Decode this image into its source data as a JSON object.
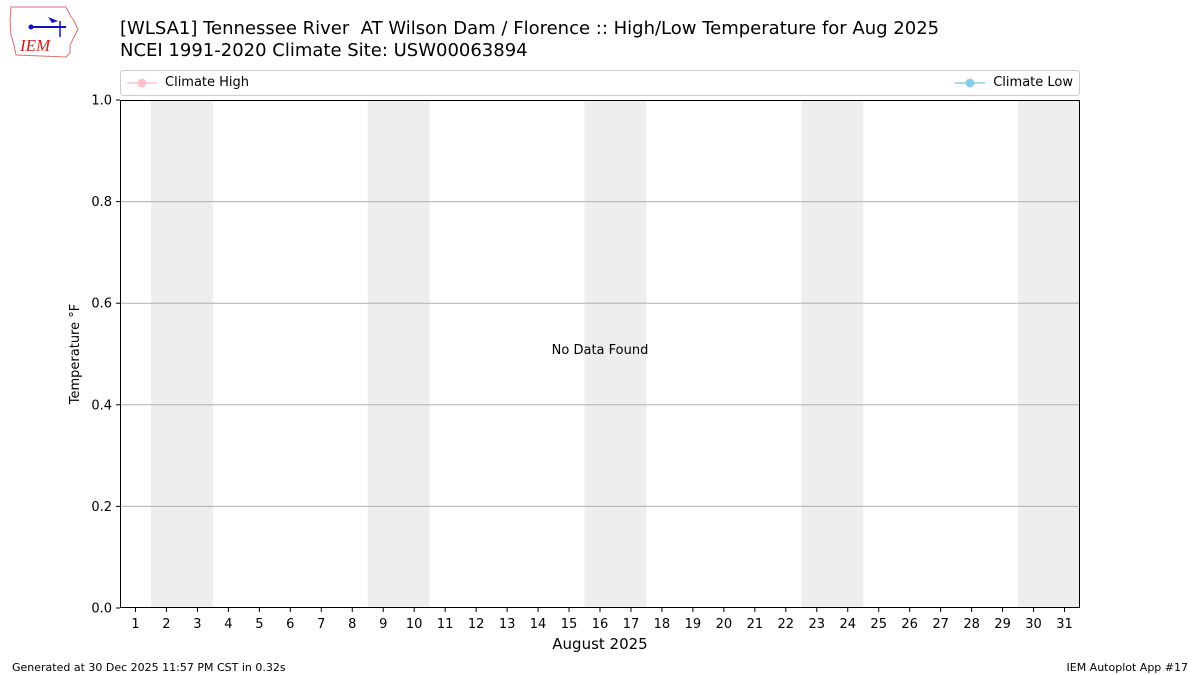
{
  "title_line1": "[WLSA1] Tennessee River  AT Wilson Dam / Florence :: High/Low Temperature for Aug 2025",
  "title_line2": "NCEI 1991-2020 Climate Site: USW00063894",
  "logo_text": "IEM",
  "footer_left": "Generated at 30 Dec 2025 11:57 PM CST in 0.32s",
  "footer_right": "IEM Autoplot App #17",
  "chart_data": {
    "type": "line",
    "xlabel": "August 2025",
    "ylabel": "Temperature °F",
    "xlim": [
      0.5,
      31.5
    ],
    "ylim": [
      0,
      1
    ],
    "x_ticks": [
      1,
      2,
      3,
      4,
      5,
      6,
      7,
      8,
      9,
      10,
      11,
      12,
      13,
      14,
      15,
      16,
      17,
      18,
      19,
      20,
      21,
      22,
      23,
      24,
      25,
      26,
      27,
      28,
      29,
      30,
      31
    ],
    "y_ticks": [
      "0.0",
      "0.2",
      "0.4",
      "0.6",
      "0.8",
      "1.0"
    ],
    "grid": "horizontal",
    "weekend_shading": [
      [
        2,
        3
      ],
      [
        9,
        10
      ],
      [
        16,
        17
      ],
      [
        23,
        24
      ],
      [
        30,
        31
      ]
    ],
    "shading_color": "#eeeeee",
    "annotation": "No Data Found",
    "legend_placement": "top",
    "series": [
      {
        "name": "Climate High",
        "color": "#ffc0cb",
        "values": []
      },
      {
        "name": "Climate Low",
        "color": "#87ceeb",
        "values": []
      }
    ]
  }
}
